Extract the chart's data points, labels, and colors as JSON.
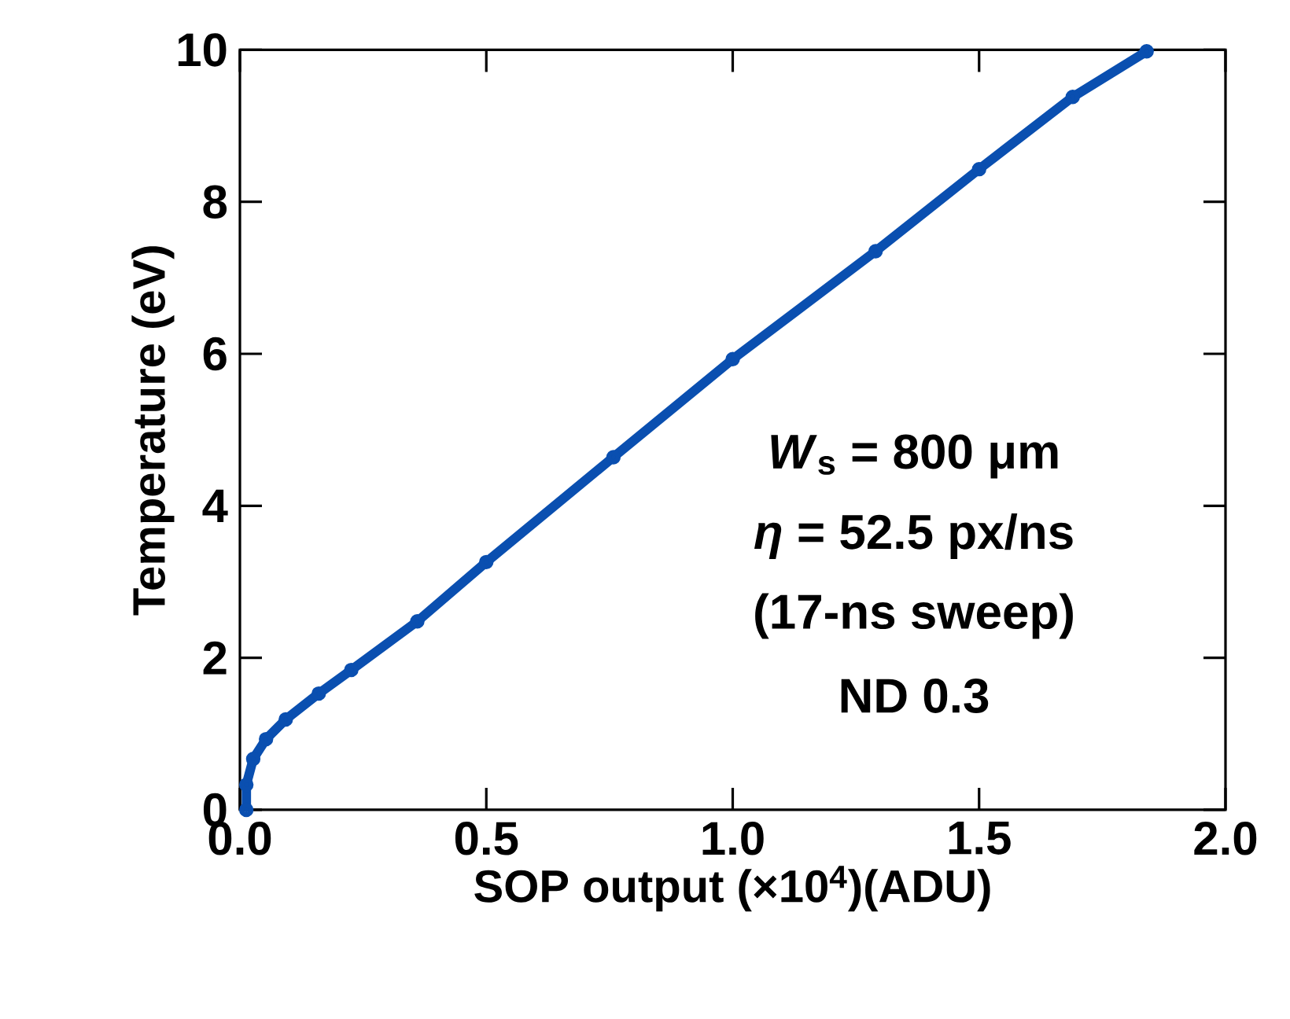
{
  "chart_data": {
    "type": "line",
    "xlabel": "SOP output (×10$^{4}$)(ADU)",
    "ylabel": "Temperature (eV)",
    "x": [
      0.013,
      0.013,
      0.027,
      0.053,
      0.093,
      0.16,
      0.226,
      0.36,
      0.5,
      0.758,
      1.0,
      1.29,
      1.5,
      1.69,
      1.84
    ],
    "series": [
      {
        "color": "#0a4fb0",
        "values": [
          0,
          0.33,
          0.67,
          0.93,
          1.19,
          1.53,
          1.84,
          2.48,
          3.26,
          4.64,
          5.93,
          7.35,
          8.43,
          9.38,
          9.98
        ]
      }
    ],
    "marker": "circle",
    "line_style": "solid",
    "xlim": [
      0,
      2.0
    ],
    "ylim": [
      0,
      10
    ],
    "xticks": [
      {
        "value": 0,
        "label": "0.0"
      },
      {
        "value": 0.5,
        "label": "0.5"
      },
      {
        "value": 1.0,
        "label": "1.0"
      },
      {
        "value": 1.5,
        "label": "1.5"
      },
      {
        "value": 2.0,
        "label": "2.0"
      }
    ],
    "yticks": [
      0,
      2,
      4,
      6,
      8,
      10
    ],
    "annotations": [
      "*W*$_{s}$ = 800 μm",
      "*η* = 52.5 px/ns",
      "(17-ns sweep)",
      "ND 0.3"
    ]
  }
}
